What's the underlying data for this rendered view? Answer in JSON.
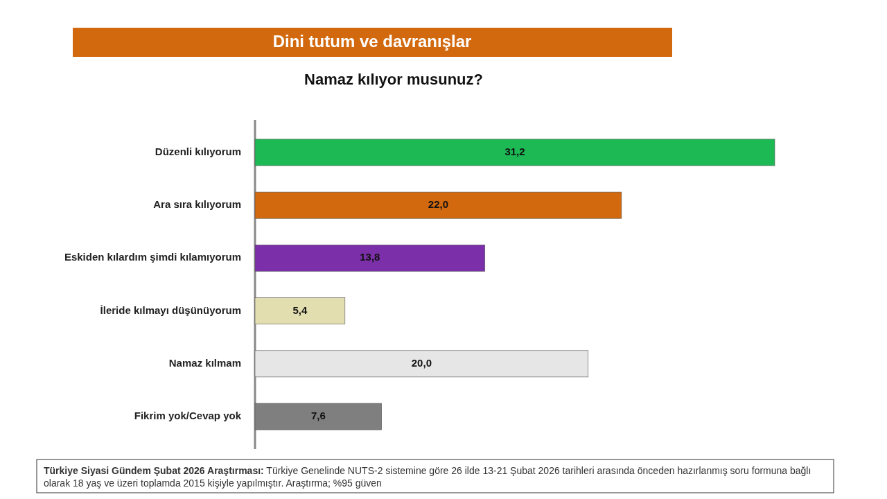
{
  "chart_data": {
    "type": "bar",
    "orientation": "horizontal",
    "title": "Dini tutum ve davranışlar",
    "subtitle": "Namaz kılıyor musunuz?",
    "categories": [
      "Düzenli kılıyorum",
      "Ara sıra kılıyorum",
      "Eskiden kılardım şimdi kılamıyorum",
      "İleride kılmayı düşünüyorum",
      "Namaz kılmam",
      "Fikrim yok/Cevap yok"
    ],
    "values": [
      31.2,
      22.0,
      13.8,
      5.4,
      20.0,
      7.6
    ],
    "value_labels": [
      "31,2",
      "22,0",
      "13,8",
      "5,4",
      "20,0",
      "7,6"
    ],
    "colors": [
      "#1db954",
      "#d2690e",
      "#7b2fa8",
      "#e3deb0",
      "#e6e6e6",
      "#7f7f7f"
    ],
    "annotations": [
      "Türkiye Siyasi Gündem Şubat 2026 Araştırması: Türkiye Genelinde NUTS-2 sistemine göre 26 ilde 13-21 Şubat 2026 tarihleri arasında önceden hazırlanmış soru formuna bağlı olarak 18 yaş ve üzeri toplamda 2015 kişiyle yapılmıştır. Araştırma; %95 güven"
    ]
  }
}
